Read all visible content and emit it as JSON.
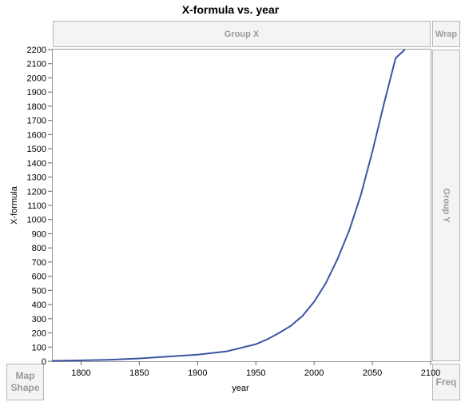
{
  "chart_data": {
    "type": "line",
    "title": "X-formula vs. year",
    "xlabel": "year",
    "ylabel": "X-formula",
    "xlim": [
      1775,
      2100
    ],
    "ylim": [
      0,
      2200
    ],
    "x_ticks": [
      1800,
      1850,
      1900,
      1950,
      2000,
      2050,
      2100
    ],
    "y_ticks": [
      0,
      100,
      200,
      300,
      400,
      500,
      600,
      700,
      800,
      900,
      1000,
      1100,
      1200,
      1300,
      1400,
      1500,
      1600,
      1700,
      1800,
      1900,
      2000,
      2100,
      2200
    ],
    "grid": false,
    "legend": "none",
    "series": [
      {
        "color": "#3b56a0",
        "x": [
          1775,
          1800,
          1825,
          1850,
          1875,
          1900,
          1925,
          1950,
          1960,
          1970,
          1980,
          1990,
          2000,
          2010,
          2020,
          2030,
          2040,
          2050,
          2060,
          2070,
          2078
        ],
        "y": [
          3,
          6,
          11,
          20,
          33,
          46,
          70,
          120,
          155,
          200,
          250,
          320,
          420,
          550,
          720,
          920,
          1170,
          1480,
          1820,
          2140,
          2210
        ]
      }
    ]
  },
  "drop_zones": {
    "group_x": "Group X",
    "wrap": "Wrap",
    "group_y": "Group Y",
    "map_shape_line1": "Map",
    "map_shape_line2": "Shape",
    "freq": "Freq"
  }
}
